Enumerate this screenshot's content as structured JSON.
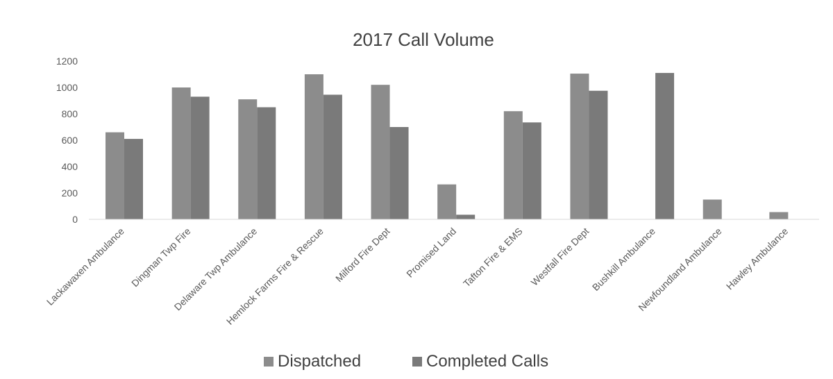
{
  "chart_data": {
    "type": "bar",
    "title": "2017 Call Volume",
    "xlabel": "",
    "ylabel": "",
    "ylim": [
      0,
      1200
    ],
    "yticks": [
      0,
      200,
      400,
      600,
      800,
      1000,
      1200
    ],
    "grid": false,
    "legend_position": "bottom",
    "categories": [
      "Lackawaxen Ambulance",
      "Dingman Twp Fire",
      "Delaware Twp Ambulance",
      "Hemlock Farms Fire & Rescue",
      "Milford Fire Dept",
      "Promised Land",
      "Tafton Fire & EMS",
      "Westfall Fire Dept",
      "Bushkill Ambulance",
      "Newfoundland Ambulance",
      "Hawley Ambulance"
    ],
    "series": [
      {
        "name": "Dispatched",
        "color": "#8c8c8c",
        "values": [
          660,
          1000,
          910,
          1100,
          1020,
          265,
          820,
          1105,
          null,
          150,
          55
        ]
      },
      {
        "name": "Completed Calls",
        "color": "#7a7a7a",
        "values": [
          610,
          930,
          850,
          945,
          700,
          35,
          735,
          975,
          1110,
          null,
          null
        ]
      }
    ]
  }
}
